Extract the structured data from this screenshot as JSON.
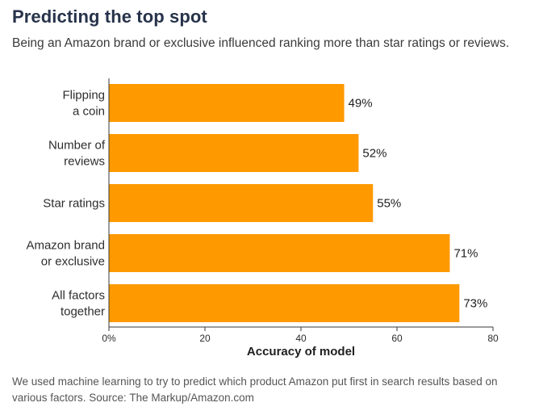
{
  "title": "Predicting the top spot",
  "subtitle": "Being an Amazon brand or exclusive influenced ranking more than star ratings or reviews.",
  "footnote": "We used machine learning to try to predict which product Amazon put first in search results based on various factors. Source: The Markup/Amazon.com",
  "colors": {
    "bar": "#ff9900",
    "text": "#2d2d2d",
    "title": "#27334a"
  },
  "chart_data": {
    "type": "bar",
    "orientation": "horizontal",
    "categories": [
      [
        "Flipping",
        "a coin"
      ],
      [
        "Number of",
        "reviews"
      ],
      [
        "Star ratings"
      ],
      [
        "Amazon brand",
        "or exclusive"
      ],
      [
        "All factors",
        "together"
      ]
    ],
    "values": [
      49,
      52,
      55,
      71,
      73
    ],
    "value_labels": [
      "49%",
      "52%",
      "55%",
      "71%",
      "73%"
    ],
    "xlabel": "Accuracy of model",
    "xlim": [
      0,
      80
    ],
    "xticks": [
      0,
      20,
      40,
      60,
      80
    ],
    "xtick_labels": [
      "0%",
      "20",
      "40",
      "60",
      "80"
    ],
    "grid": false
  }
}
